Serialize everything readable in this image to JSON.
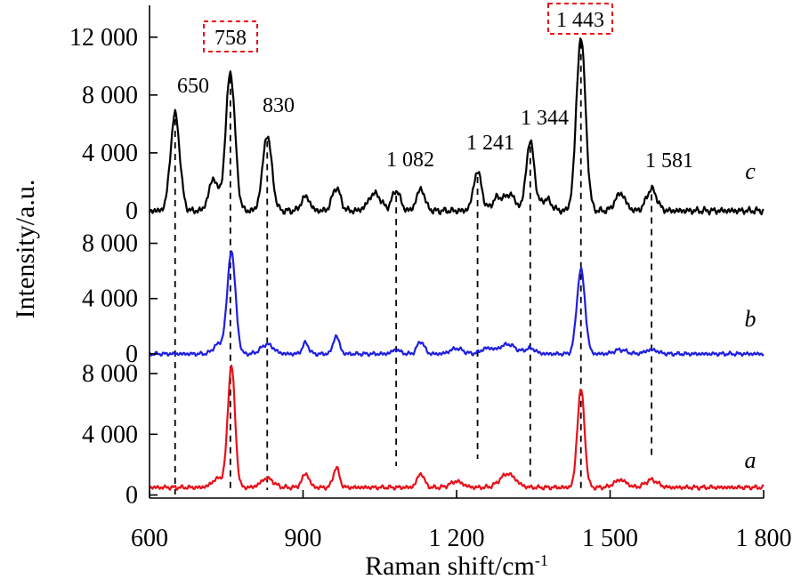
{
  "chart_data": {
    "type": "line",
    "xlabel": "Raman shift/cm",
    "xlabel_sup": "-1",
    "ylabel": "Intensity/a.u.",
    "xlim": [
      600,
      1800
    ],
    "x_ticks": [
      {
        "value": 600,
        "label": "600"
      },
      {
        "value": 900,
        "label": "900"
      },
      {
        "value": 1200,
        "label": "1 200"
      },
      {
        "value": 1500,
        "label": "1 500"
      },
      {
        "value": 1800,
        "label": "1 800"
      }
    ],
    "panels": [
      {
        "series": "c",
        "ylim": [
          -250,
          14200
        ],
        "ticks": [
          {
            "value": 0,
            "label": "0"
          },
          {
            "value": 4000,
            "label": "4 000"
          },
          {
            "value": 8000,
            "label": "8 000"
          },
          {
            "value": 12000,
            "label": "12 000"
          }
        ]
      },
      {
        "series": "b",
        "ylim": [
          -200,
          9000
        ],
        "ticks": [
          {
            "value": 0,
            "label": "0"
          },
          {
            "value": 4000,
            "label": "4 000"
          },
          {
            "value": 8000,
            "label": "8 000"
          }
        ]
      },
      {
        "series": "a",
        "ylim": [
          -200,
          8000
        ],
        "ticks": [
          {
            "value": 0,
            "label": "0"
          },
          {
            "value": 4000,
            "label": "4 000"
          },
          {
            "value": 8000,
            "label": "8 000"
          }
        ]
      }
    ],
    "series": [
      {
        "name": "c",
        "color": "#000000",
        "baseline": 0,
        "peaks": [
          [
            650,
            6700,
            9
          ],
          [
            725,
            2200,
            9
          ],
          [
            758,
            9600,
            9
          ],
          [
            830,
            5200,
            9
          ],
          [
            905,
            1000,
            8
          ],
          [
            965,
            1600,
            8
          ],
          [
            1040,
            1200,
            12
          ],
          [
            1082,
            1400,
            8
          ],
          [
            1130,
            1500,
            8
          ],
          [
            1241,
            2700,
            8
          ],
          [
            1280,
            900,
            10
          ],
          [
            1305,
            1100,
            10
          ],
          [
            1344,
            4800,
            8
          ],
          [
            1375,
            800,
            10
          ],
          [
            1443,
            12000,
            9
          ],
          [
            1520,
            1200,
            10
          ],
          [
            1581,
            1500,
            10
          ]
        ]
      },
      {
        "name": "b",
        "color": "#1f1fe0",
        "baseline": 0,
        "peaks": [
          [
            735,
            700,
            10
          ],
          [
            760,
            7400,
            8
          ],
          [
            830,
            700,
            12
          ],
          [
            905,
            800,
            6
          ],
          [
            965,
            1300,
            6
          ],
          [
            1082,
            300,
            8
          ],
          [
            1130,
            900,
            7
          ],
          [
            1200,
            400,
            12
          ],
          [
            1260,
            400,
            12
          ],
          [
            1300,
            700,
            15
          ],
          [
            1344,
            400,
            10
          ],
          [
            1443,
            6100,
            8
          ],
          [
            1520,
            300,
            12
          ],
          [
            1581,
            300,
            12
          ]
        ]
      },
      {
        "name": "a",
        "color": "#e8101a",
        "baseline": 500,
        "peaks": [
          [
            735,
            600,
            12
          ],
          [
            760,
            8000,
            7
          ],
          [
            830,
            600,
            12
          ],
          [
            905,
            900,
            7
          ],
          [
            965,
            1300,
            6
          ],
          [
            1130,
            900,
            7
          ],
          [
            1200,
            400,
            12
          ],
          [
            1300,
            900,
            15
          ],
          [
            1443,
            6500,
            7
          ],
          [
            1520,
            500,
            12
          ],
          [
            1581,
            500,
            12
          ]
        ]
      }
    ],
    "peak_labels": [
      {
        "text": "650",
        "x": 650,
        "boxed": false
      },
      {
        "text": "758",
        "x": 758,
        "boxed": true
      },
      {
        "text": "830",
        "x": 830,
        "boxed": false
      },
      {
        "text": "1 082",
        "x": 1082,
        "boxed": false
      },
      {
        "text": "1 241",
        "x": 1241,
        "boxed": false
      },
      {
        "text": "1 344",
        "x": 1344,
        "boxed": false
      },
      {
        "text": "1 443",
        "x": 1443,
        "boxed": true
      },
      {
        "text": "1 581",
        "x": 1581,
        "boxed": false
      }
    ],
    "dashed_guides_x": [
      650,
      758,
      830,
      1082,
      1241,
      1344,
      1443,
      1581
    ],
    "box_color": "#e8101a"
  }
}
